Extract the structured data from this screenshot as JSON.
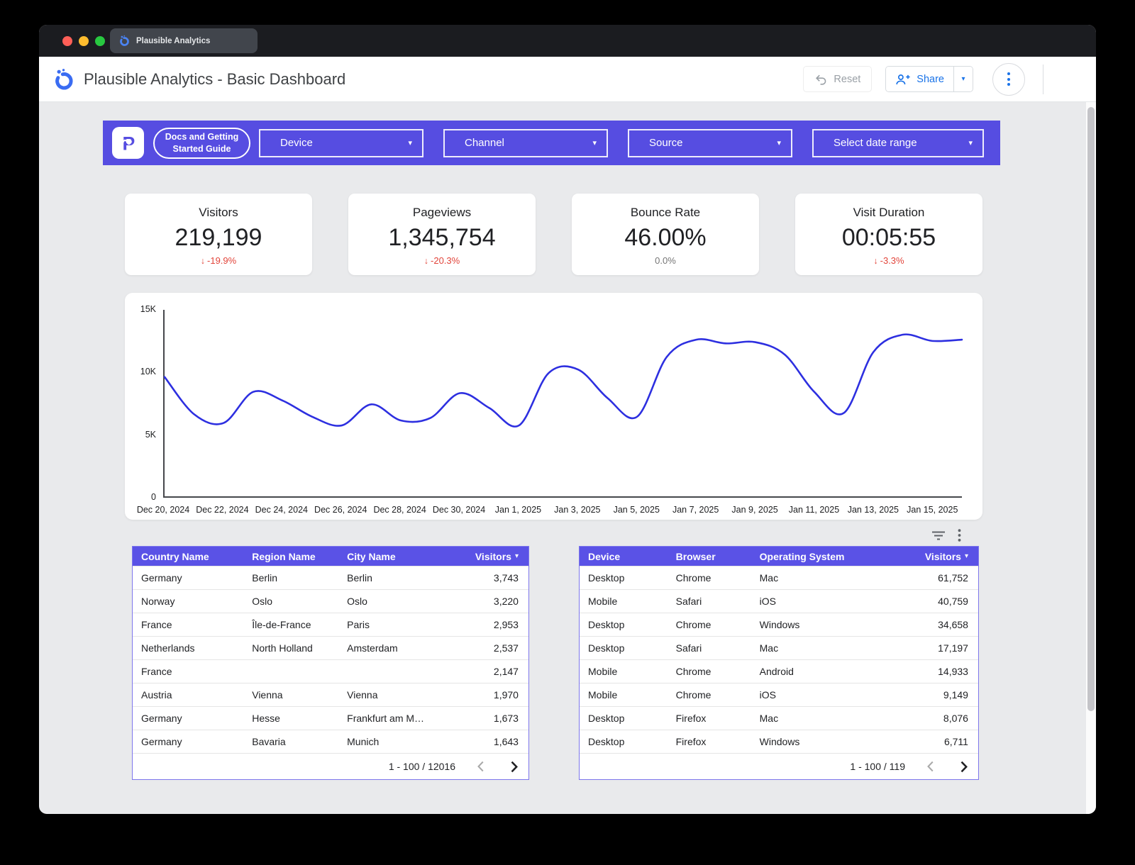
{
  "window": {
    "tab_title": "Plausible Analytics"
  },
  "header": {
    "title": "Plausible Analytics - Basic Dashboard",
    "reset_label": "Reset",
    "share_label": "Share"
  },
  "toolbar": {
    "docs_button": "Docs and Getting Started Guide",
    "filters": [
      "Device",
      "Channel",
      "Source",
      "Select date range"
    ]
  },
  "kpis": [
    {
      "label": "Visitors",
      "value": "219,199",
      "delta": "-19.9%",
      "direction": "down"
    },
    {
      "label": "Pageviews",
      "value": "1,345,754",
      "delta": "-20.3%",
      "direction": "down"
    },
    {
      "label": "Bounce Rate",
      "value": "46.00%",
      "delta": "0.0%",
      "direction": "flat"
    },
    {
      "label": "Visit Duration",
      "value": "00:05:55",
      "delta": "-3.3%",
      "direction": "down"
    }
  ],
  "chart_data": {
    "type": "line",
    "title": "Visitors over time",
    "x": [
      "Dec 20, 2024",
      "Dec 21, 2024",
      "Dec 22, 2024",
      "Dec 23, 2024",
      "Dec 24, 2024",
      "Dec 25, 2024",
      "Dec 26, 2024",
      "Dec 27, 2024",
      "Dec 28, 2024",
      "Dec 29, 2024",
      "Dec 30, 2024",
      "Dec 31, 2024",
      "Jan 1, 2025",
      "Jan 2, 2025",
      "Jan 3, 2025",
      "Jan 4, 2025",
      "Jan 5, 2025",
      "Jan 6, 2025",
      "Jan 7, 2025",
      "Jan 8, 2025",
      "Jan 9, 2025",
      "Jan 10, 2025",
      "Jan 11, 2025",
      "Jan 12, 2025",
      "Jan 13, 2025",
      "Jan 14, 2025",
      "Jan 15, 2025",
      "Jan 16, 2025"
    ],
    "series": [
      {
        "name": "Visitors",
        "values": [
          9600,
          6600,
          5900,
          8400,
          7700,
          6400,
          5700,
          7400,
          6100,
          6300,
          8300,
          7100,
          5700,
          9900,
          10200,
          7900,
          6400,
          11200,
          12600,
          12300,
          12400,
          11400,
          8400,
          6700,
          11600,
          13000,
          12500,
          12600
        ]
      }
    ],
    "xticks": [
      {
        "i": 0,
        "label": "Dec 20, 2024"
      },
      {
        "i": 2,
        "label": "Dec 22, 2024"
      },
      {
        "i": 4,
        "label": "Dec 24, 2024"
      },
      {
        "i": 6,
        "label": "Dec 26, 2024"
      },
      {
        "i": 8,
        "label": "Dec 28, 2024"
      },
      {
        "i": 10,
        "label": "Dec 30, 2024"
      },
      {
        "i": 12,
        "label": "Jan 1, 2025"
      },
      {
        "i": 14,
        "label": "Jan 3, 2025"
      },
      {
        "i": 16,
        "label": "Jan 5, 2025"
      },
      {
        "i": 18,
        "label": "Jan 7, 2025"
      },
      {
        "i": 20,
        "label": "Jan 9, 2025"
      },
      {
        "i": 22,
        "label": "Jan 11, 2025"
      },
      {
        "i": 24,
        "label": "Jan 13, 2025"
      },
      {
        "i": 26,
        "label": "Jan 15, 2025"
      }
    ],
    "yticks": [
      {
        "value": 0,
        "label": "0"
      },
      {
        "value": 5000,
        "label": "5K"
      },
      {
        "value": 10000,
        "label": "10K"
      },
      {
        "value": 15000,
        "label": "15K"
      }
    ],
    "ylim": [
      0,
      15000
    ],
    "xlabel": "",
    "ylabel": "",
    "grid": false,
    "legend": false,
    "line_color": "#2d2fe0"
  },
  "geo_table": {
    "columns": [
      "Country Name",
      "Region Name",
      "City Name",
      "Visitors"
    ],
    "sort_column": "Visitors",
    "rows": [
      [
        "Germany",
        "Berlin",
        "Berlin",
        "3,743"
      ],
      [
        "Norway",
        "Oslo",
        "Oslo",
        "3,220"
      ],
      [
        "France",
        "Île-de-France",
        "Paris",
        "2,953"
      ],
      [
        "Netherlands",
        "North Holland",
        "Amsterdam",
        "2,537"
      ],
      [
        "France",
        "",
        "",
        "2,147"
      ],
      [
        "Austria",
        "Vienna",
        "Vienna",
        "1,970"
      ],
      [
        "Germany",
        "Hesse",
        "Frankfurt am M…",
        "1,673"
      ],
      [
        "Germany",
        "Bavaria",
        "Munich",
        "1,643"
      ]
    ],
    "pagination": "1 - 100 / 12016"
  },
  "tech_table": {
    "columns": [
      "Device",
      "Browser",
      "Operating System",
      "Visitors"
    ],
    "sort_column": "Visitors",
    "rows": [
      [
        "Desktop",
        "Chrome",
        "Mac",
        "61,752"
      ],
      [
        "Mobile",
        "Safari",
        "iOS",
        "40,759"
      ],
      [
        "Desktop",
        "Chrome",
        "Windows",
        "34,658"
      ],
      [
        "Desktop",
        "Safari",
        "Mac",
        "17,197"
      ],
      [
        "Mobile",
        "Chrome",
        "Android",
        "14,933"
      ],
      [
        "Mobile",
        "Chrome",
        "iOS",
        "9,149"
      ],
      [
        "Desktop",
        "Firefox",
        "Mac",
        "8,076"
      ],
      [
        "Desktop",
        "Firefox",
        "Windows",
        "6,711"
      ]
    ],
    "pagination": "1 - 100 / 119"
  },
  "colors": {
    "accent_purple": "#564de1",
    "table_header_purple": "#5a52e6",
    "link_blue": "#1a73e8",
    "line_blue": "#2d2fe0",
    "delta_red": "#e2443a",
    "delta_neutral_gray": "#767676"
  }
}
